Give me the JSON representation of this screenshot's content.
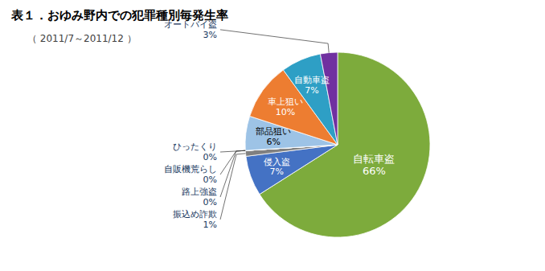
{
  "chart_data": {
    "type": "pie",
    "title": "表１．おゆみ野内での犯罪種別毎発生率",
    "subtitle": "（ 2011/7～2011/12 ）",
    "categories": [
      "自転車盗",
      "侵入盗",
      "振込め詐欺",
      "ひったくり",
      "自販機荒らし",
      "路上強盗",
      "部品狙い",
      "車上狙い",
      "自動車盗",
      "オートバイ盗"
    ],
    "values": [
      66,
      7,
      1,
      0,
      0,
      0,
      6,
      10,
      7,
      3
    ],
    "value_labels": [
      "66%",
      "7%",
      "1%",
      "0%",
      "0%",
      "0%",
      "6%",
      "10%",
      "7%",
      "3%"
    ],
    "colors": [
      "#7dab3c",
      "#4472c4",
      "#808080",
      "#d0d0d0",
      "#b0b0b0",
      "#c8c8c8",
      "#9dc3e6",
      "#ed7d31",
      "#2e9fc5",
      "#7030a0"
    ],
    "data_labels": true
  }
}
